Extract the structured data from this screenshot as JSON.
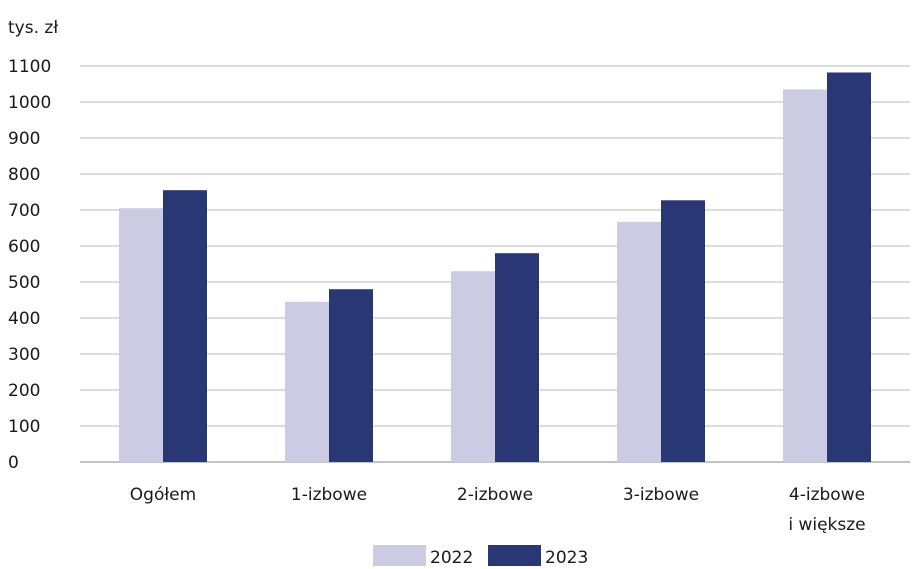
{
  "chart_data": {
    "type": "bar",
    "unit_label": "tys. zł",
    "categories": [
      [
        "Ogółem"
      ],
      [
        "1-izbowe"
      ],
      [
        "2-izbowe"
      ],
      [
        "3-izbowe"
      ],
      [
        "4-izbowe",
        "i większe"
      ]
    ],
    "series": [
      {
        "name": "2022",
        "color": "#cbcce3",
        "values": [
          705,
          445,
          530,
          667,
          1035
        ]
      },
      {
        "name": "2023",
        "color": "#2a3775",
        "values": [
          755,
          480,
          580,
          727,
          1082
        ]
      }
    ],
    "ylim": [
      0,
      1100
    ],
    "yticks": [
      0,
      100,
      200,
      300,
      400,
      500,
      600,
      700,
      800,
      900,
      1000,
      1100
    ],
    "grid": true,
    "legend_position": "bottom-center"
  }
}
